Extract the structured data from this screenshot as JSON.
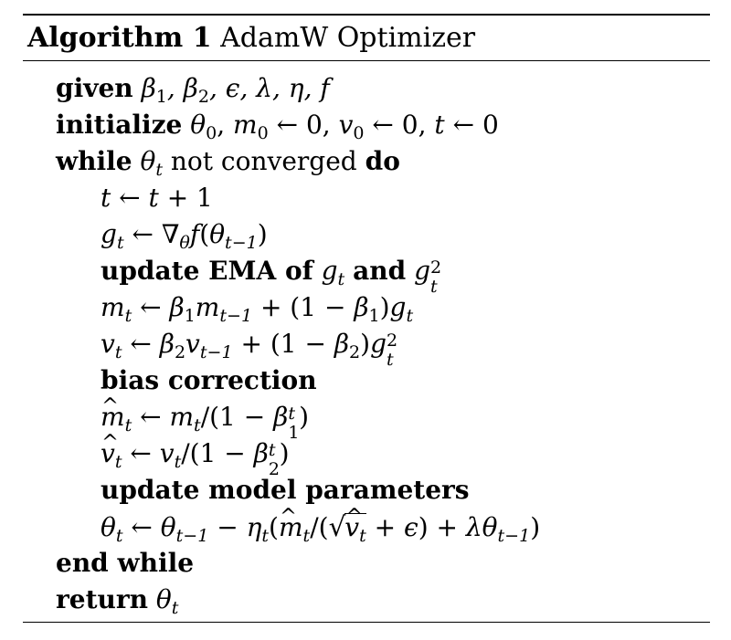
{
  "algorithm": {
    "label": "Algorithm 1",
    "name": "AdamW Optimizer"
  },
  "keywords": {
    "given": "given",
    "initialize": "initialize",
    "while": "while",
    "not_converged": "not converged",
    "do": "do",
    "update_ema": "update EMA of",
    "and": "and",
    "bias_correction": "bias correction",
    "update_params": "update model parameters",
    "end_while": "end while",
    "return": "return"
  }
}
